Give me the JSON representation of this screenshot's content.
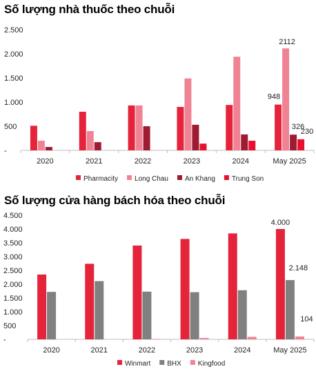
{
  "chart_data": [
    {
      "type": "bar",
      "title": "Số lượng nhà thuốc theo chuỗi",
      "categories": [
        "2020",
        "2021",
        "2022",
        "2023",
        "2024",
        "May 2025"
      ],
      "ylim": [
        0,
        2500
      ],
      "yticks": [
        "-",
        "500",
        "1.000",
        "1.500",
        "2.000",
        "2.500"
      ],
      "ytick_values": [
        0,
        500,
        1000,
        1500,
        2000,
        2500
      ],
      "legend_position": "bottom",
      "series": [
        {
          "name": "Pharmacity",
          "color": "#e5243b",
          "values": [
            510,
            800,
            930,
            900,
            940,
            948
          ]
        },
        {
          "name": "Long Chau",
          "color": "#f08393",
          "values": [
            200,
            400,
            930,
            1490,
            1940,
            2112
          ]
        },
        {
          "name": "An Khang",
          "color": "#9e1b32",
          "values": [
            70,
            170,
            500,
            530,
            330,
            326
          ]
        },
        {
          "name": "Trung Son",
          "color": "#e8102f",
          "values": [
            0,
            0,
            0,
            140,
            200,
            230
          ]
        }
      ],
      "data_labels": [
        {
          "series": 0,
          "index": 5,
          "text": "948"
        },
        {
          "series": 1,
          "index": 5,
          "text": "2112"
        },
        {
          "series": 2,
          "index": 5,
          "text": "326"
        },
        {
          "series": 3,
          "index": 5,
          "text": "230"
        }
      ]
    },
    {
      "type": "bar",
      "title": "Số lượng cửa hàng bách hóa theo chuỗi",
      "categories": [
        "2020",
        "2021",
        "2022",
        "2023",
        "2024",
        "May 2025"
      ],
      "ylim": [
        0,
        4500
      ],
      "yticks": [
        "-",
        "500",
        "1.000",
        "1.500",
        "2.000",
        "2.500",
        "3.000",
        "3.500",
        "4.000",
        "4.500"
      ],
      "ytick_values": [
        0,
        500,
        1000,
        1500,
        2000,
        2500,
        3000,
        3500,
        4000,
        4500
      ],
      "legend_position": "bottom",
      "series": [
        {
          "name": "Winmart",
          "color": "#e5243b",
          "values": [
            2350,
            2740,
            3400,
            3640,
            3840,
            4000
          ]
        },
        {
          "name": "BHX",
          "color": "#808080",
          "values": [
            1720,
            2110,
            1730,
            1710,
            1780,
            2148
          ]
        },
        {
          "name": "Kingfood",
          "color": "#f08393",
          "values": [
            0,
            0,
            15,
            50,
            90,
            104
          ]
        }
      ],
      "data_labels": [
        {
          "series": 0,
          "index": 5,
          "text": "4.000"
        },
        {
          "series": 1,
          "index": 5,
          "text": "2.148"
        },
        {
          "series": 2,
          "index": 5,
          "text": "104"
        }
      ]
    }
  ]
}
